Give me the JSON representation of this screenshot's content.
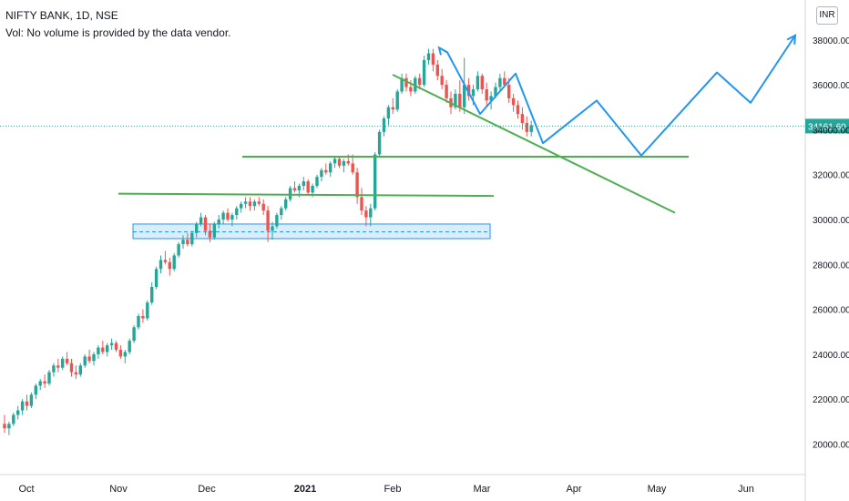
{
  "header": {
    "symbol": "NIFTY BANK, 1D, NSE",
    "volume_note": "Vol: No volume is provided by the data vendor."
  },
  "currency_button": "INR",
  "colors": {
    "up": "#26a69a",
    "down": "#ef5350",
    "trend": "#4caf50",
    "projection": "#2196f3",
    "zone": "#bbdefb",
    "last_price_bg": "#26a69a"
  },
  "chart_data": {
    "type": "candlestick",
    "x_labels": [
      "Oct",
      "Nov",
      "Dec",
      "2021",
      "Feb",
      "Mar",
      "Apr",
      "May",
      "Jun"
    ],
    "y_ticks": [
      "38000.00",
      "36000.00",
      "34000.00",
      "32000.00",
      "30000.00",
      "28000.00",
      "26000.00",
      "24000.00",
      "22000.00",
      "20000.00"
    ],
    "ylim": [
      19000,
      39000
    ],
    "last_price": {
      "value": 34161.6,
      "label": "34161.60"
    },
    "candles": [
      [
        20900,
        21300,
        20500,
        20700
      ],
      [
        20700,
        21000,
        20400,
        20900
      ],
      [
        20900,
        21400,
        20800,
        21300
      ],
      [
        21300,
        21700,
        21100,
        21500
      ],
      [
        21500,
        22000,
        21300,
        21900
      ],
      [
        21900,
        22200,
        21500,
        21700
      ],
      [
        21700,
        22300,
        21600,
        22200
      ],
      [
        22200,
        22700,
        22000,
        22600
      ],
      [
        22600,
        22900,
        22400,
        22800
      ],
      [
        22800,
        23100,
        22500,
        22700
      ],
      [
        22700,
        23300,
        22600,
        23200
      ],
      [
        23200,
        23600,
        23000,
        23500
      ],
      [
        23500,
        23800,
        23200,
        23400
      ],
      [
        23400,
        23900,
        23300,
        23800
      ],
      [
        23800,
        24100,
        23500,
        23600
      ],
      [
        23600,
        23800,
        23000,
        23200
      ],
      [
        23200,
        23500,
        22900,
        23100
      ],
      [
        23100,
        23600,
        23000,
        23500
      ],
      [
        23500,
        24000,
        23400,
        23900
      ],
      [
        23900,
        24200,
        23600,
        23700
      ],
      [
        23700,
        24100,
        23500,
        24000
      ],
      [
        24000,
        24400,
        23800,
        24300
      ],
      [
        24300,
        24600,
        24000,
        24100
      ],
      [
        24100,
        24500,
        23900,
        24400
      ],
      [
        24400,
        24700,
        24200,
        24500
      ],
      [
        24500,
        24600,
        24100,
        24200
      ],
      [
        24200,
        24400,
        23800,
        23900
      ],
      [
        23900,
        24200,
        23600,
        24100
      ],
      [
        24100,
        24700,
        24000,
        24600
      ],
      [
        24600,
        25300,
        24500,
        25200
      ],
      [
        25200,
        25800,
        25100,
        25700
      ],
      [
        25700,
        26000,
        25400,
        25600
      ],
      [
        25600,
        26400,
        25500,
        26300
      ],
      [
        26300,
        27200,
        26200,
        27000
      ],
      [
        27000,
        27900,
        26900,
        27800
      ],
      [
        27800,
        28400,
        27600,
        28200
      ],
      [
        28200,
        28600,
        28000,
        28100
      ],
      [
        28100,
        28300,
        27500,
        27800
      ],
      [
        27800,
        28500,
        27700,
        28400
      ],
      [
        28400,
        29000,
        28300,
        28900
      ],
      [
        28900,
        29300,
        28700,
        29100
      ],
      [
        29100,
        29400,
        28800,
        28900
      ],
      [
        28900,
        29500,
        28800,
        29400
      ],
      [
        29400,
        29900,
        29200,
        29800
      ],
      [
        29800,
        30300,
        29700,
        30100
      ],
      [
        30100,
        30200,
        29300,
        29500
      ],
      [
        29500,
        29800,
        29000,
        29200
      ],
      [
        29200,
        29900,
        29100,
        29800
      ],
      [
        29800,
        30200,
        29600,
        30000
      ],
      [
        30000,
        30400,
        29800,
        30300
      ],
      [
        30300,
        30500,
        29900,
        30000
      ],
      [
        30000,
        30300,
        29700,
        30200
      ],
      [
        30200,
        30600,
        30000,
        30500
      ],
      [
        30500,
        30800,
        30300,
        30700
      ],
      [
        30700,
        31000,
        30500,
        30800
      ],
      [
        30800,
        31000,
        30400,
        30600
      ],
      [
        30600,
        30900,
        30400,
        30800
      ],
      [
        30800,
        31000,
        30600,
        30700
      ],
      [
        30700,
        30900,
        30200,
        30400
      ],
      [
        30400,
        30600,
        29000,
        29500
      ],
      [
        29500,
        29900,
        29100,
        29700
      ],
      [
        29700,
        30300,
        29600,
        30200
      ],
      [
        30200,
        30600,
        30000,
        30500
      ],
      [
        30500,
        31000,
        30400,
        30900
      ],
      [
        30900,
        31500,
        30800,
        31400
      ],
      [
        31400,
        31700,
        31200,
        31300
      ],
      [
        31300,
        31600,
        31000,
        31500
      ],
      [
        31500,
        31900,
        31300,
        31700
      ],
      [
        31700,
        31800,
        31100,
        31200
      ],
      [
        31200,
        31600,
        31000,
        31500
      ],
      [
        31500,
        32000,
        31400,
        31900
      ],
      [
        31900,
        32300,
        31700,
        32200
      ],
      [
        32200,
        32500,
        32000,
        32100
      ],
      [
        32100,
        32600,
        31900,
        32500
      ],
      [
        32500,
        32800,
        32300,
        32700
      ],
      [
        32700,
        32800,
        32300,
        32400
      ],
      [
        32400,
        32700,
        32100,
        32600
      ],
      [
        32600,
        32900,
        32400,
        32500
      ],
      [
        32500,
        32900,
        32000,
        32100
      ],
      [
        32100,
        32300,
        30700,
        31000
      ],
      [
        31000,
        31400,
        30200,
        30400
      ],
      [
        30400,
        30600,
        29700,
        30100
      ],
      [
        30100,
        30700,
        29700,
        30500
      ],
      [
        30500,
        33000,
        30400,
        32900
      ],
      [
        32900,
        34000,
        32800,
        33900
      ],
      [
        33900,
        34600,
        33700,
        34500
      ],
      [
        34500,
        35100,
        34200,
        35000
      ],
      [
        35000,
        35400,
        34700,
        34900
      ],
      [
        34900,
        35800,
        34800,
        35700
      ],
      [
        35700,
        36500,
        35600,
        36300
      ],
      [
        36300,
        36500,
        35700,
        35900
      ],
      [
        35900,
        36200,
        35500,
        35700
      ],
      [
        35700,
        36400,
        35600,
        36300
      ],
      [
        36300,
        36500,
        35800,
        36000
      ],
      [
        36000,
        37300,
        35900,
        37100
      ],
      [
        37100,
        37600,
        36900,
        37400
      ],
      [
        37400,
        37600,
        36600,
        36900
      ],
      [
        36900,
        37100,
        36200,
        36400
      ],
      [
        36400,
        36700,
        35800,
        36000
      ],
      [
        36000,
        36200,
        35200,
        35400
      ],
      [
        35400,
        35700,
        34700,
        35000
      ],
      [
        35000,
        35800,
        34900,
        35600
      ],
      [
        35600,
        36200,
        34800,
        35000
      ],
      [
        35000,
        37200,
        34700,
        36000
      ],
      [
        36000,
        36300,
        35300,
        35500
      ],
      [
        35500,
        36000,
        35100,
        35800
      ],
      [
        35800,
        36600,
        35700,
        36400
      ],
      [
        36400,
        36500,
        35600,
        35800
      ],
      [
        35800,
        36100,
        35000,
        35300
      ],
      [
        35300,
        35700,
        34900,
        35500
      ],
      [
        35500,
        36100,
        35400,
        35900
      ],
      [
        35900,
        36500,
        35700,
        36300
      ],
      [
        36300,
        36600,
        35900,
        36000
      ],
      [
        36000,
        36300,
        35200,
        35400
      ],
      [
        35400,
        35600,
        34800,
        35100
      ],
      [
        35100,
        35300,
        34500,
        34700
      ],
      [
        34700,
        35000,
        34000,
        34300
      ],
      [
        34300,
        34600,
        33700,
        33900
      ],
      [
        33900,
        34400,
        33700,
        34200
      ]
    ],
    "trendlines": [
      {
        "role": "support-top",
        "color": "#4caf50",
        "points": [
          [
            130,
            31150
          ],
          [
            542,
            31050
          ]
        ]
      },
      {
        "role": "support-mid",
        "color": "#4caf50",
        "points": [
          [
            266,
            32800
          ],
          [
            756,
            32800
          ]
        ]
      },
      {
        "role": "descending",
        "color": "#4caf50",
        "points": [
          [
            431,
            36450
          ],
          [
            741,
            30300
          ]
        ]
      }
    ],
    "zone": {
      "x_start": 146,
      "x_end": 538,
      "top": 29800,
      "bottom": 29150,
      "mid": 29450
    },
    "projection": [
      [
        482,
        37650
      ],
      [
        491,
        37450
      ],
      [
        527,
        34700
      ],
      [
        566,
        36500
      ],
      [
        596,
        33400
      ],
      [
        655,
        35300
      ],
      [
        704,
        32850
      ],
      [
        787,
        36550
      ],
      [
        824,
        35200
      ],
      [
        873,
        38200
      ]
    ]
  }
}
